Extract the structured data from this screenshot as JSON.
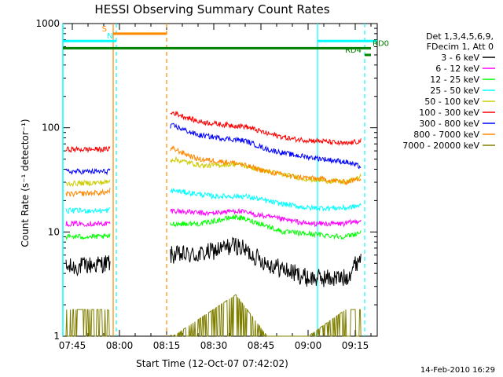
{
  "chart_data": {
    "type": "line",
    "title": "HESSI Observing Summary Count Rates",
    "xlabel": "Start Time (12-Oct-07 07:42:02)",
    "ylabel": "Count Rate (s⁻¹ detector⁻¹)",
    "y_scale": "log",
    "ylim": [
      1,
      1000
    ],
    "xlim": [
      "07:42",
      "09:22"
    ],
    "x_tick_labels": [
      "07:45",
      "08:00",
      "08:15",
      "08:30",
      "08:45",
      "09:00",
      "09:15"
    ],
    "y_tick_labels": [
      "1",
      "10",
      "100",
      "1000"
    ],
    "legend_header": [
      "Det 1,3,4,5,6,9,",
      "FDecim 1, Att 0"
    ],
    "legend_position": "right",
    "series": [
      {
        "name": "3 - 6 keV",
        "color": "#000000",
        "points": [
          [
            "07:43",
            4.5
          ],
          [
            "07:56",
            5.0
          ],
          [
            "08:17",
            6.0
          ],
          [
            "08:25",
            6.0
          ],
          [
            "08:37",
            7.5
          ],
          [
            "08:47",
            5.0
          ],
          [
            "09:00",
            3.6
          ],
          [
            "09:12",
            3.6
          ],
          [
            "09:17",
            6.0
          ]
        ]
      },
      {
        "name": "6 - 12 keV",
        "color": "#ff00ff",
        "points": [
          [
            "07:43",
            12
          ],
          [
            "07:56",
            12
          ],
          [
            "08:17",
            16
          ],
          [
            "08:28",
            15
          ],
          [
            "08:37",
            16
          ],
          [
            "08:47",
            14
          ],
          [
            "09:00",
            12
          ],
          [
            "09:12",
            12
          ],
          [
            "09:17",
            13
          ]
        ]
      },
      {
        "name": "12 - 25 keV",
        "color": "#00ff00",
        "points": [
          [
            "07:43",
            9
          ],
          [
            "07:56",
            9
          ],
          [
            "08:17",
            12
          ],
          [
            "08:26",
            12
          ],
          [
            "08:37",
            14
          ],
          [
            "08:45",
            12
          ],
          [
            "08:52",
            10
          ],
          [
            "09:12",
            9
          ],
          [
            "09:17",
            10
          ]
        ]
      },
      {
        "name": "25 - 50 keV",
        "color": "#00ffff",
        "points": [
          [
            "07:43",
            16
          ],
          [
            "07:56",
            16
          ],
          [
            "08:17",
            25
          ],
          [
            "08:30",
            22
          ],
          [
            "08:40",
            22
          ],
          [
            "08:50",
            19
          ],
          [
            "09:00",
            17
          ],
          [
            "09:12",
            17
          ],
          [
            "09:17",
            18
          ]
        ]
      },
      {
        "name": "50 - 100 keV",
        "color": "#cccc00",
        "points": [
          [
            "07:43",
            29
          ],
          [
            "07:56",
            30
          ],
          [
            "08:17",
            50
          ],
          [
            "08:27",
            43
          ],
          [
            "08:37",
            45
          ],
          [
            "08:47",
            38
          ],
          [
            "09:00",
            32
          ],
          [
            "09:12",
            30
          ],
          [
            "09:17",
            34
          ]
        ]
      },
      {
        "name": "100 - 300 keV",
        "color": "#ff0000",
        "points": [
          [
            "07:43",
            62
          ],
          [
            "07:56",
            62
          ],
          [
            "08:17",
            140
          ],
          [
            "08:25",
            115
          ],
          [
            "08:32",
            108
          ],
          [
            "08:40",
            103
          ],
          [
            "08:47",
            88
          ],
          [
            "08:55",
            78
          ],
          [
            "09:05",
            74
          ],
          [
            "09:12",
            70
          ],
          [
            "09:17",
            75
          ]
        ]
      },
      {
        "name": "300 - 800 keV",
        "color": "#0000ff",
        "points": [
          [
            "07:43",
            38
          ],
          [
            "07:56",
            38
          ],
          [
            "08:17",
            105
          ],
          [
            "08:25",
            85
          ],
          [
            "08:32",
            80
          ],
          [
            "08:40",
            75
          ],
          [
            "08:47",
            62
          ],
          [
            "08:55",
            55
          ],
          [
            "09:05",
            50
          ],
          [
            "09:12",
            47
          ],
          [
            "09:17",
            42
          ]
        ]
      },
      {
        "name": "800 - 7000 keV",
        "color": "#ff8800",
        "points": [
          [
            "07:43",
            23
          ],
          [
            "07:56",
            24
          ],
          [
            "08:17",
            63
          ],
          [
            "08:25",
            50
          ],
          [
            "08:37",
            46
          ],
          [
            "08:47",
            38
          ],
          [
            "08:55",
            34
          ],
          [
            "09:05",
            32
          ],
          [
            "09:12",
            30
          ],
          [
            "09:17",
            33
          ]
        ]
      },
      {
        "name": "7000 - 20000 keV",
        "color": "#808000",
        "points": [
          [
            "07:43",
            1.8
          ],
          [
            "07:56",
            1.8
          ],
          [
            "08:17",
            1.0
          ],
          [
            "08:37",
            2.5
          ],
          [
            "08:47",
            1.0
          ],
          [
            "09:00",
            1.0
          ],
          [
            "09:12",
            1.8
          ],
          [
            "09:17",
            1.8
          ]
        ]
      }
    ],
    "flags": [
      {
        "label": "S",
        "color": "#ff8800",
        "from": "07:58",
        "to": "08:15",
        "y": 800
      },
      {
        "label": "N",
        "color": "#00ffff",
        "from": "07:42",
        "to": "07:59",
        "y": 680
      },
      {
        "label": "",
        "color": "#00ffff",
        "from": "09:03",
        "to": "09:22",
        "y": 680
      },
      {
        "label": "RD0",
        "color": "#008000",
        "from": "07:42",
        "to": "09:20",
        "y": 580
      },
      {
        "label": "RD4",
        "color": "#008000",
        "from": "09:18",
        "to": "09:20",
        "y": 500
      }
    ],
    "vertical_markers": [
      {
        "time": "07:58",
        "color": "#ff8800",
        "style": "solid"
      },
      {
        "time": "07:59",
        "color": "#00ffff",
        "style": "dashed"
      },
      {
        "time": "08:15",
        "color": "#ff8800",
        "style": "dashed"
      },
      {
        "time": "09:03",
        "color": "#00ffff",
        "style": "solid"
      },
      {
        "time": "09:18",
        "color": "#00ffff",
        "style": "dashed"
      }
    ],
    "gaps": [
      [
        "07:57",
        "08:16"
      ]
    ]
  },
  "timestamp": "14-Feb-2010 16:29"
}
